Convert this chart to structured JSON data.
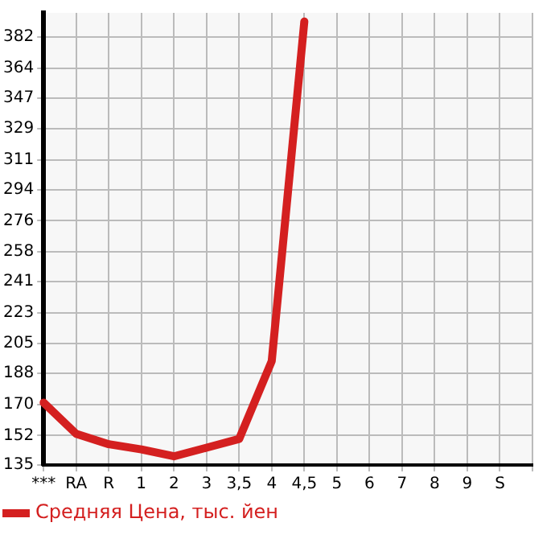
{
  "chart_data": {
    "type": "line",
    "categories": [
      "***",
      "RA",
      "R",
      "1",
      "2",
      "3",
      "3,5",
      "4",
      "4,5",
      "5",
      "6",
      "7",
      "8",
      "9",
      "S",
      null
    ],
    "series": [
      {
        "name": "Средняя Цена, тыс. йен",
        "color": "#d42020",
        "values": [
          171,
          153,
          147,
          144,
          140,
          145,
          150,
          195,
          391,
          null,
          null,
          null,
          null,
          null,
          null,
          null
        ]
      }
    ],
    "ylim": [
      135,
      396
    ],
    "yticks": [
      135,
      152,
      170,
      188,
      205,
      223,
      241,
      258,
      276,
      294,
      311,
      329,
      347,
      364,
      382
    ],
    "grid": true,
    "legend": "bottom",
    "marker": "none",
    "line_style": "solid"
  }
}
